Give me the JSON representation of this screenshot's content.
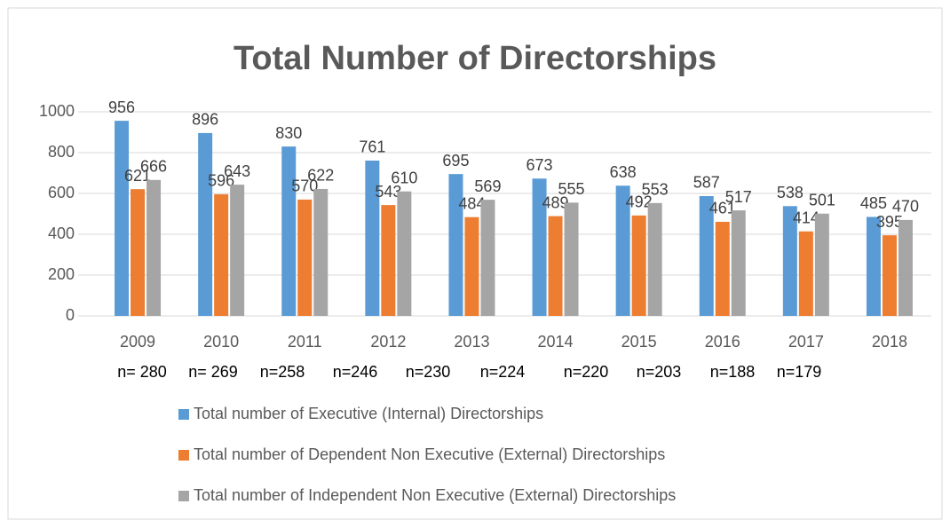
{
  "chart_data": {
    "type": "bar",
    "title": "Total Number of Directorships",
    "categories": [
      "2009",
      "2010",
      "2011",
      "2012",
      "2013",
      "2014",
      "2015",
      "2016",
      "2017",
      "2018"
    ],
    "series": [
      {
        "name": "Total number of Executive (Internal) Directorships",
        "color": "#5b9bd5",
        "values": [
          956,
          896,
          830,
          761,
          695,
          673,
          638,
          587,
          538,
          485
        ]
      },
      {
        "name": "Total number of Dependent Non Executive (External) Directorships",
        "color": "#ed7d31",
        "values": [
          621,
          596,
          570,
          543,
          484,
          489,
          492,
          461,
          414,
          395
        ]
      },
      {
        "name": "Total number of Independent Non Executive (External) Directorships",
        "color": "#a5a5a5",
        "values": [
          666,
          643,
          622,
          610,
          569,
          555,
          553,
          517,
          501,
          470
        ]
      }
    ],
    "annotations": [
      "n= 280",
      "n= 269",
      "n=258",
      "n=246",
      "n=230",
      "n=224",
      "n=220",
      "n=203",
      "n=188",
      "n=179"
    ],
    "ylim": [
      0,
      1000
    ],
    "yticks": [
      0,
      200,
      400,
      600,
      800,
      1000
    ],
    "grid": true,
    "legend": "bottom"
  }
}
